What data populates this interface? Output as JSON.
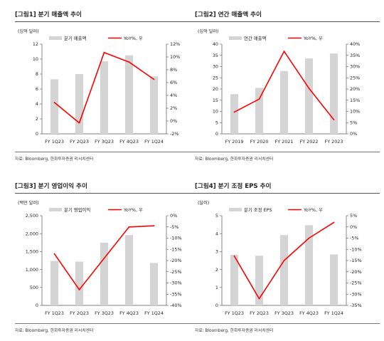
{
  "source_note": "자료: Bloomberg, 한화투자증권 리서치센터",
  "chart_data": [
    {
      "type": "bar+line",
      "title": "[그림1] 분기 매출액 추이",
      "left_unit": "(십억 달러)",
      "categories": [
        "FY 1Q23",
        "FY 2Q23",
        "FY 3Q23",
        "FY 4Q23",
        "FY 1Q24"
      ],
      "left_ticks": [
        "0",
        "2",
        "4",
        "6",
        "8",
        "10",
        "12"
      ],
      "right_ticks": [
        "-2%",
        "0%",
        "2%",
        "4%",
        "6%",
        "8%",
        "10%",
        "12%"
      ],
      "ylim_left": [
        0,
        12
      ],
      "ylim_right": [
        -2,
        12
      ],
      "series": [
        {
          "name": "분기 매출액",
          "kind": "bar",
          "axis": "left",
          "color": "#d4d4d4",
          "values": [
            7.3,
            8.0,
            9.7,
            10.5,
            7.7
          ]
        },
        {
          "name": "YoY%, 우",
          "kind": "line",
          "axis": "right",
          "color": "#ff0000",
          "values": [
            2.9,
            -0.3,
            10.7,
            9.2,
            6.5
          ]
        }
      ]
    },
    {
      "type": "bar+line",
      "title": "[그림2] 연간 매출액 추이",
      "left_unit": "(십억 달러)",
      "categories": [
        "FY 2019",
        "FY 2020",
        "FY 2021",
        "FY 2022",
        "FY 2023"
      ],
      "left_ticks": [
        "0",
        "5",
        "10",
        "15",
        "20",
        "25",
        "30",
        "35",
        "40"
      ],
      "right_ticks": [
        "0%",
        "5%",
        "10%",
        "15%",
        "20%",
        "25%",
        "30%",
        "35%",
        "40%"
      ],
      "ylim_left": [
        0,
        40
      ],
      "ylim_right": [
        0,
        40
      ],
      "series": [
        {
          "name": "연간 매출액",
          "kind": "bar",
          "axis": "left",
          "color": "#d4d4d4",
          "values": [
            17.7,
            20.5,
            28.0,
            33.6,
            35.8
          ]
        },
        {
          "name": "YoY%, 우",
          "kind": "line",
          "axis": "right",
          "color": "#ff0000",
          "values": [
            9.7,
            15.5,
            36.8,
            20.3,
            6.3
          ]
        }
      ]
    },
    {
      "type": "bar+line",
      "title": "[그림3] 분기 영업이익 추이",
      "left_unit": "(백만 달러)",
      "categories": [
        "FY 1Q23",
        "FY 2Q23",
        "FY 3Q23",
        "FY 4Q23",
        "FY 1Q24"
      ],
      "left_ticks": [
        "0",
        "500",
        "1,000",
        "1,500",
        "2,000",
        "2,500"
      ],
      "right_ticks": [
        "-40%",
        "-35%",
        "-30%",
        "-25%",
        "-20%",
        "-15%",
        "-10%",
        "-5%",
        "0%"
      ],
      "ylim_left": [
        0,
        2500
      ],
      "ylim_right": [
        -40,
        0
      ],
      "series": [
        {
          "name": "분기 영업이익",
          "kind": "bar",
          "axis": "left",
          "color": "#d4d4d4",
          "values": [
            1240,
            1220,
            1750,
            1960,
            1180
          ]
        },
        {
          "name": "YoY%, 우",
          "kind": "line",
          "axis": "right",
          "color": "#ff0000",
          "values": [
            -17,
            -33,
            -19,
            -5,
            -4.5
          ]
        }
      ]
    },
    {
      "type": "bar+line",
      "title": "[그림4] 분기 조정 EPS 추이",
      "left_unit": "(달러)",
      "categories": [
        "FY 1Q23",
        "FY 2Q23",
        "FY 3Q23",
        "FY 4Q23",
        "FY 1Q24"
      ],
      "left_ticks": [
        "0",
        "1",
        "2",
        "3",
        "4",
        "5"
      ],
      "right_ticks": [
        "-35%",
        "-30%",
        "-25%",
        "-20%",
        "-15%",
        "-10%",
        "-5%",
        "0%",
        "5%"
      ],
      "ylim_left": [
        0,
        5
      ],
      "ylim_right": [
        -35,
        5
      ],
      "series": [
        {
          "name": "분기 조정 EPS",
          "kind": "bar",
          "axis": "left",
          "color": "#d4d4d4",
          "values": [
            2.82,
            2.77,
            3.92,
            4.47,
            2.84
          ]
        },
        {
          "name": "YoY%, 우",
          "kind": "line",
          "axis": "right",
          "color": "#ff0000",
          "values": [
            -13,
            -32,
            -15,
            -5,
            2
          ]
        }
      ]
    }
  ]
}
